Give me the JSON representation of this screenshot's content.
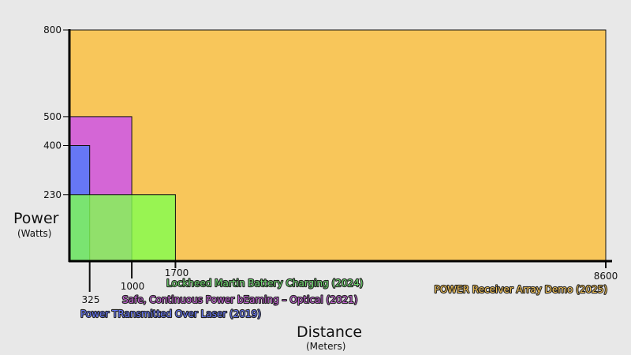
{
  "chart_data": {
    "type": "area",
    "xlabel": "Distance",
    "xunit": "(Meters)",
    "ylabel": "Power",
    "yunit": "(Watts)",
    "xlim": [
      0,
      8600
    ],
    "ylim": [
      0,
      800
    ],
    "grid": false,
    "series": [
      {
        "name": "POWER Receiver Array Demo (2025)",
        "x": 8600,
        "y": 800,
        "color": "#f8c65a",
        "opacity": 1
      },
      {
        "name": "Safe, Continuous Power bEaming – Optical (2021)",
        "x": 1000,
        "y": 500,
        "color": "#d466d6",
        "opacity": 1
      },
      {
        "name": "Power TRansmitted Over Laser (2019)",
        "x": 325,
        "y": 400,
        "color": "#6677f5",
        "opacity": 1
      },
      {
        "name": "Lockheed Martin Battery Charging (2024)",
        "x": 1700,
        "y": 230,
        "color": "#80ff50",
        "opacity": 0.8
      }
    ],
    "label_colors": [
      "#f8c65a",
      "#c060d0",
      "#6677f5",
      "#6fd86f"
    ],
    "x_ticks": [
      "325",
      "1000",
      "1700",
      "8600"
    ],
    "y_ticks": [
      "230",
      "400",
      "500",
      "800"
    ]
  }
}
